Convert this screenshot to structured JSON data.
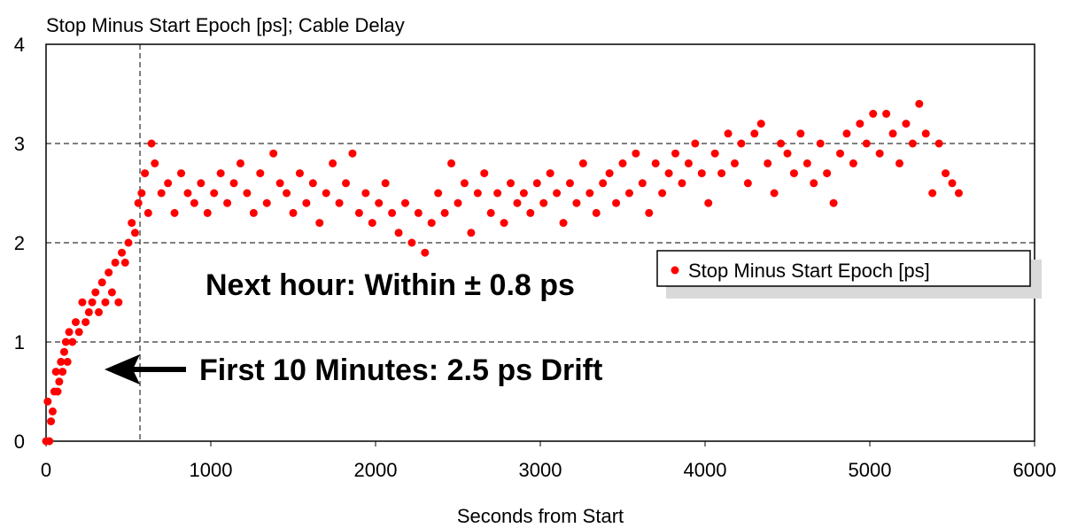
{
  "chart_data": {
    "type": "scatter",
    "title": "Stop Minus Start Epoch [ps]; Cable Delay",
    "xlabel": "Seconds from Start",
    "xlim": [
      0,
      6000
    ],
    "xticks": [
      0,
      1000,
      2000,
      3000,
      4000,
      5000,
      6000
    ],
    "ylim": [
      0,
      4
    ],
    "yticks": [
      0,
      1,
      2,
      3,
      4
    ],
    "grid": true,
    "vlines": [
      570
    ],
    "legend": "center-right",
    "annotations": [
      "Next hour: Within ± 0.8 ps",
      "First 10 Minutes: 2.5 ps Drift"
    ],
    "series": [
      {
        "name": "Stop Minus Start Epoch [ps]",
        "color": "#ff0000",
        "x": [
          0,
          10,
          20,
          30,
          40,
          50,
          60,
          70,
          80,
          90,
          100,
          110,
          120,
          130,
          140,
          160,
          180,
          200,
          220,
          240,
          260,
          280,
          300,
          320,
          340,
          360,
          380,
          400,
          420,
          440,
          460,
          480,
          500,
          520,
          540,
          560,
          580,
          600,
          620,
          640,
          660,
          700,
          740,
          780,
          820,
          860,
          900,
          940,
          980,
          1020,
          1060,
          1100,
          1140,
          1180,
          1220,
          1260,
          1300,
          1340,
          1380,
          1420,
          1460,
          1500,
          1540,
          1580,
          1620,
          1660,
          1700,
          1740,
          1780,
          1820,
          1860,
          1900,
          1940,
          1980,
          2020,
          2060,
          2100,
          2140,
          2180,
          2220,
          2260,
          2300,
          2340,
          2380,
          2420,
          2460,
          2500,
          2540,
          2580,
          2620,
          2660,
          2700,
          2740,
          2780,
          2820,
          2860,
          2900,
          2940,
          2980,
          3020,
          3060,
          3100,
          3140,
          3180,
          3220,
          3260,
          3300,
          3340,
          3380,
          3420,
          3460,
          3500,
          3540,
          3580,
          3620,
          3660,
          3700,
          3740,
          3780,
          3820,
          3860,
          3900,
          3940,
          3980,
          4020,
          4060,
          4100,
          4140,
          4180,
          4220,
          4260,
          4300,
          4340,
          4380,
          4420,
          4460,
          4500,
          4540,
          4580,
          4620,
          4660,
          4700,
          4740,
          4780,
          4820,
          4860,
          4900,
          4940,
          4980,
          5020,
          5060,
          5100,
          5140,
          5180,
          5220,
          5260,
          5300,
          5340,
          5380,
          5420,
          5460,
          5500,
          5540
        ],
        "values": [
          0,
          0.4,
          0,
          0.2,
          0.3,
          0.5,
          0.7,
          0.5,
          0.6,
          0.8,
          0.7,
          0.9,
          1.0,
          0.8,
          1.1,
          1.0,
          1.2,
          1.1,
          1.4,
          1.2,
          1.3,
          1.4,
          1.5,
          1.3,
          1.6,
          1.4,
          1.7,
          1.5,
          1.8,
          1.4,
          1.9,
          1.8,
          2.0,
          2.2,
          2.1,
          2.4,
          2.5,
          2.7,
          2.3,
          3.0,
          2.8,
          2.5,
          2.6,
          2.3,
          2.7,
          2.5,
          2.4,
          2.6,
          2.3,
          2.5,
          2.7,
          2.4,
          2.6,
          2.8,
          2.5,
          2.3,
          2.7,
          2.4,
          2.9,
          2.6,
          2.5,
          2.3,
          2.7,
          2.4,
          2.6,
          2.2,
          2.5,
          2.8,
          2.4,
          2.6,
          2.9,
          2.3,
          2.5,
          2.2,
          2.4,
          2.6,
          2.3,
          2.1,
          2.4,
          2.0,
          2.3,
          1.9,
          2.2,
          2.5,
          2.3,
          2.8,
          2.4,
          2.6,
          2.1,
          2.5,
          2.7,
          2.3,
          2.5,
          2.2,
          2.6,
          2.4,
          2.5,
          2.3,
          2.6,
          2.4,
          2.7,
          2.5,
          2.2,
          2.6,
          2.4,
          2.8,
          2.5,
          2.3,
          2.6,
          2.7,
          2.4,
          2.8,
          2.5,
          2.9,
          2.6,
          2.3,
          2.8,
          2.5,
          2.7,
          2.9,
          2.6,
          2.8,
          3.0,
          2.7,
          2.4,
          2.9,
          2.7,
          3.1,
          2.8,
          3.0,
          2.6,
          3.1,
          3.2,
          2.8,
          2.5,
          3.0,
          2.9,
          2.7,
          3.1,
          2.8,
          2.6,
          3.0,
          2.7,
          2.4,
          2.9,
          3.1,
          2.8,
          3.2,
          3.0,
          3.3,
          2.9,
          3.3,
          3.1,
          2.8,
          3.2,
          3.0,
          3.4,
          3.1,
          2.5,
          3.0,
          2.7,
          2.6,
          2.5
        ]
      }
    ]
  }
}
